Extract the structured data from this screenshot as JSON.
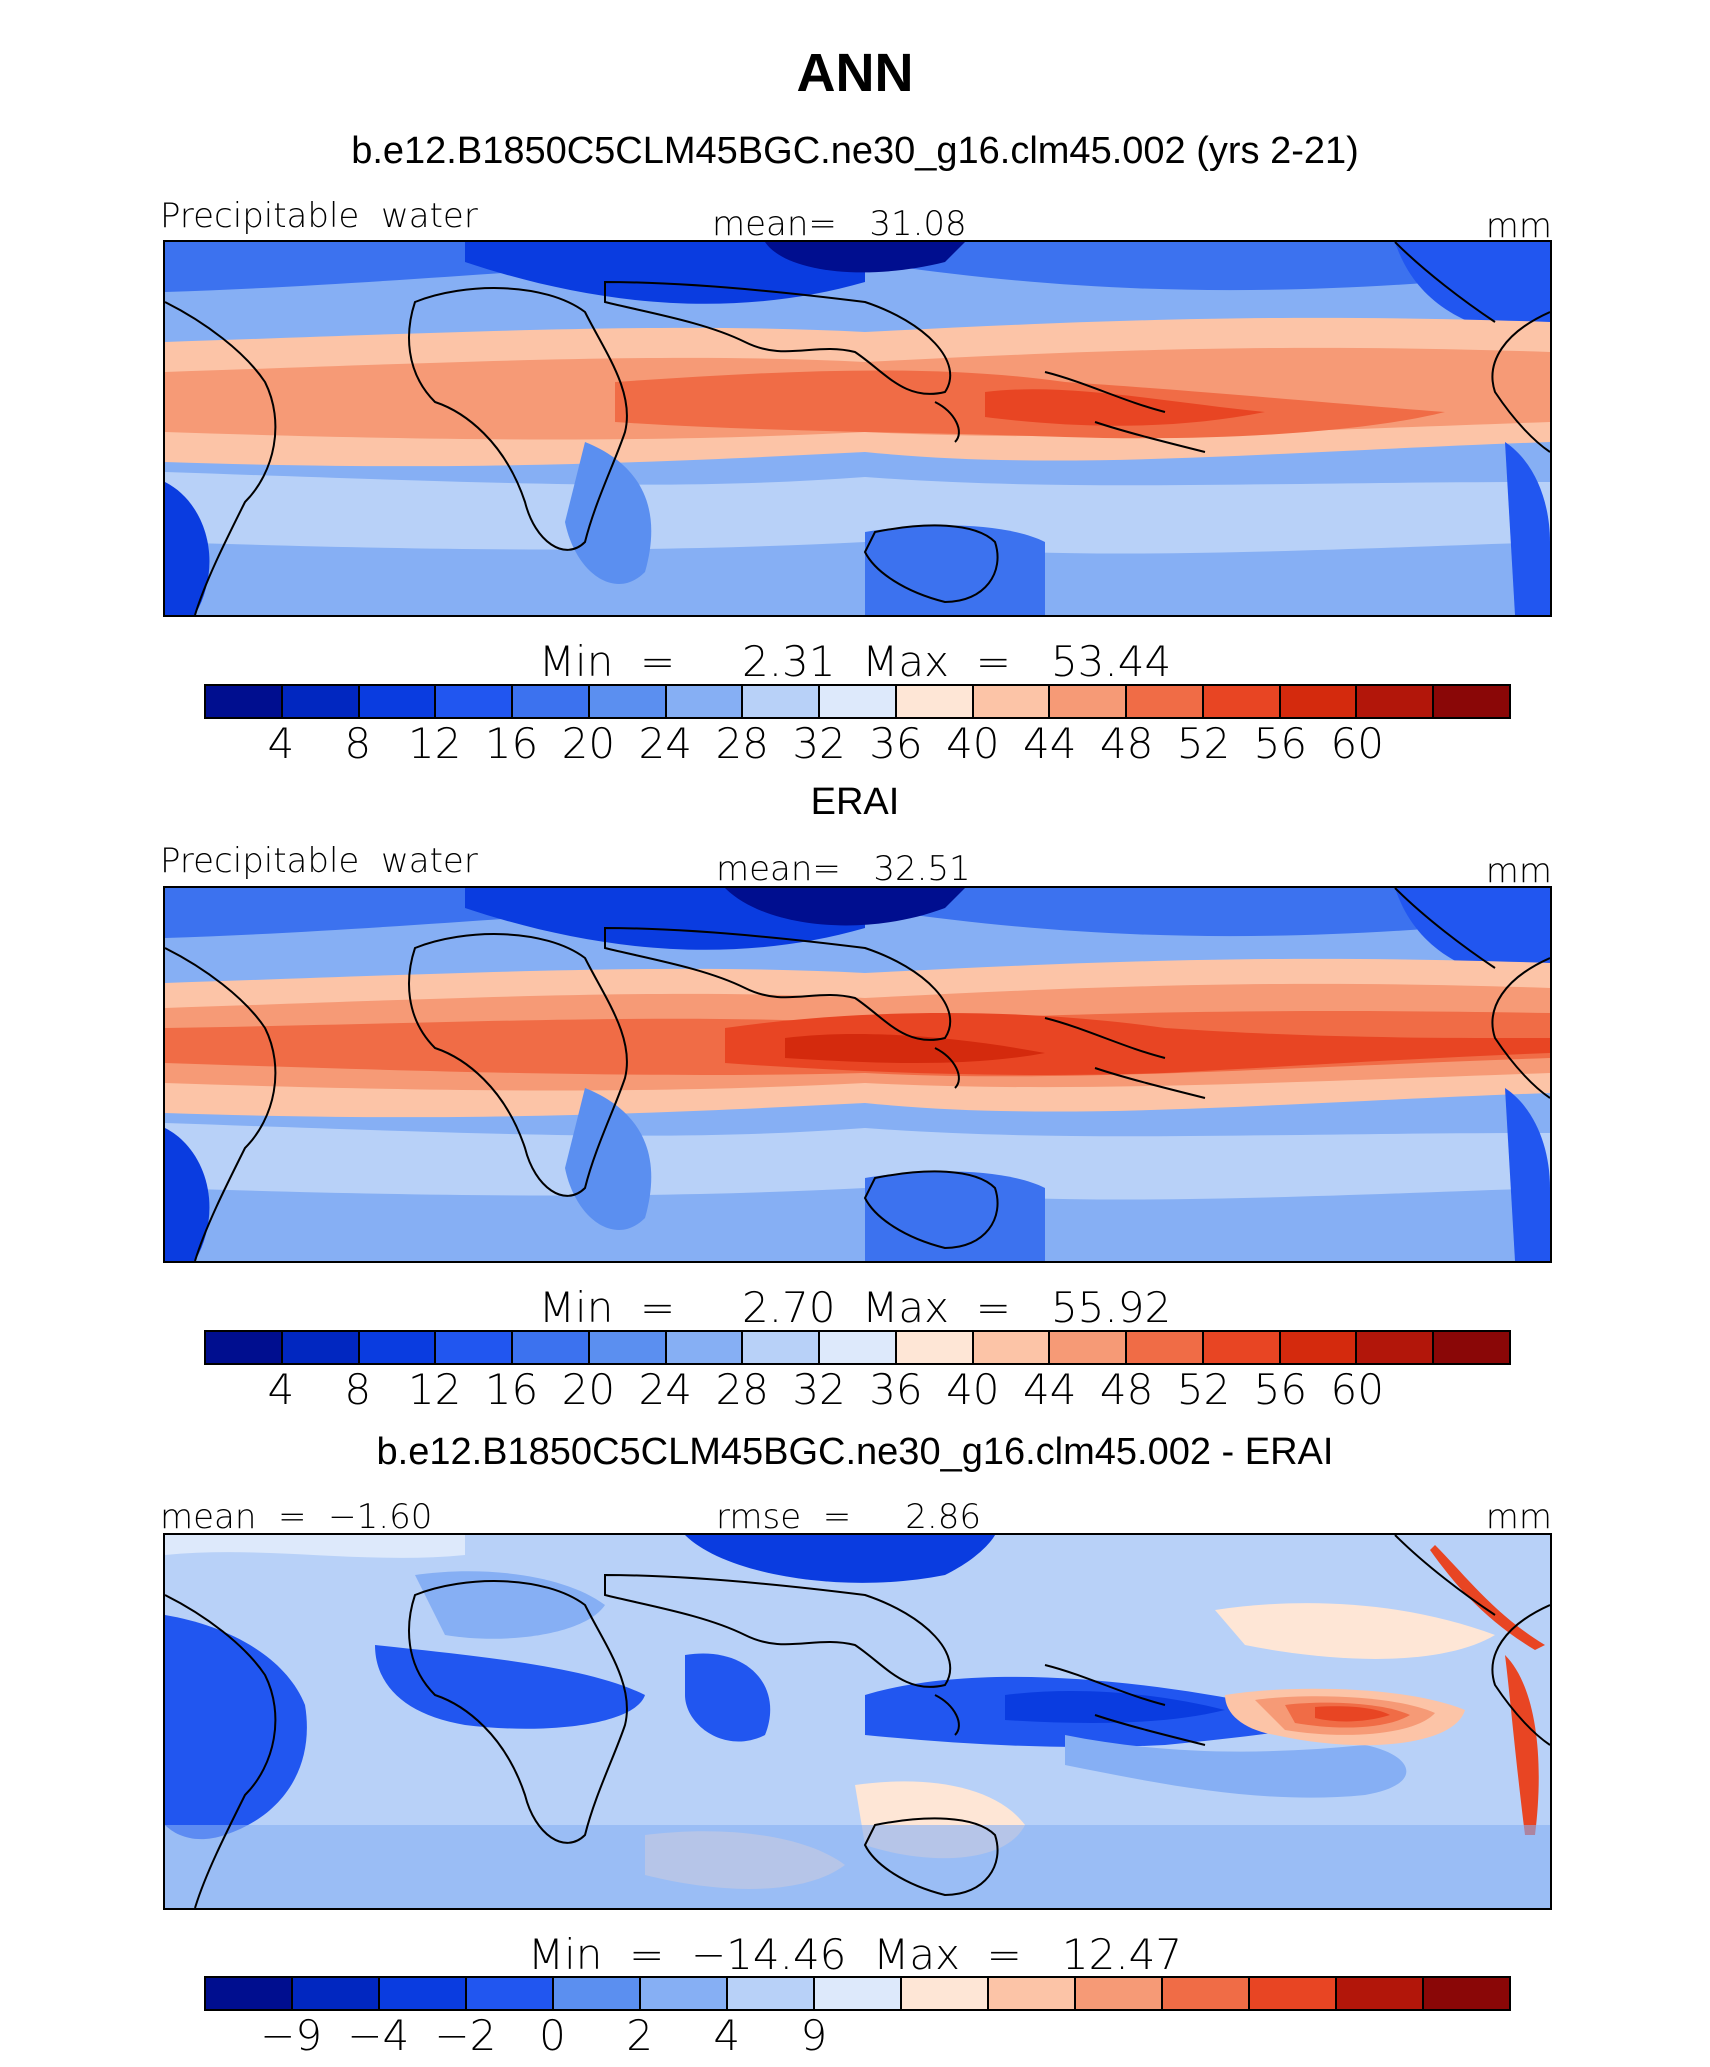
{
  "title": "ANN",
  "panels": [
    {
      "id": "model",
      "subtitle": "b.e12.B1850C5CLM45BGC.ne30_g16.clm45.002 (yrs 2-21)",
      "left_label": "Precipitable  water",
      "center_label": "mean=   31.08",
      "units": "mm",
      "minmax": "Min  =     2.31  Max  =   53.44",
      "colorbar_ticks": [
        "4",
        "8",
        "12",
        "16",
        "20",
        "24",
        "28",
        "32",
        "36",
        "40",
        "44",
        "48",
        "52",
        "56",
        "60"
      ]
    },
    {
      "id": "obs",
      "subtitle": "ERAI",
      "left_label": "Precipitable  water",
      "center_label": "mean=   32.51",
      "units": "mm",
      "minmax": "Min  =     2.70  Max  =   55.92",
      "colorbar_ticks": [
        "4",
        "8",
        "12",
        "16",
        "20",
        "24",
        "28",
        "32",
        "36",
        "40",
        "44",
        "48",
        "52",
        "56",
        "60"
      ]
    },
    {
      "id": "diff",
      "subtitle": "b.e12.B1850C5CLM45BGC.ne30_g16.clm45.002 - ERAI",
      "left_label": "mean  =  −1.60",
      "center_label": "rmse  =     2.86",
      "units": "mm",
      "minmax": "Min  =  −14.46  Max  =   12.47",
      "colorbar_ticks": [
        "−9",
        "−4",
        "−2",
        "0",
        "2",
        "4",
        "9"
      ]
    }
  ],
  "colors": {
    "palette": [
      "#000e8f",
      "#0127c0",
      "#0a3ce0",
      "#2156f0",
      "#3c72ef",
      "#5b8ff0",
      "#86aff4",
      "#b8d1f8",
      "#dde9fb",
      "#fee6d6",
      "#fcc4a7",
      "#f69a76",
      "#f06c46",
      "#e84523",
      "#d42a0d",
      "#b2160a",
      "#8a0707"
    ],
    "abs_colorbar": [
      "#000e8f",
      "#0127c0",
      "#0a3ce0",
      "#2156f0",
      "#3c72ef",
      "#5b8ff0",
      "#86aff4",
      "#b8d1f8",
      "#dde9fb",
      "#fee6d6",
      "#fcc4a7",
      "#f69a76",
      "#f06c46",
      "#e84523",
      "#d42a0d",
      "#b2160a",
      "#8a0707"
    ],
    "diff_colorbar": [
      "#000e8f",
      "#0127c0",
      "#0a3ce0",
      "#2156f0",
      "#5b8ff0",
      "#86aff4",
      "#b8d1f8",
      "#dde9fb",
      "#fee6d6",
      "#fcc4a7",
      "#f69a76",
      "#f06c46",
      "#e84523",
      "#b2160a",
      "#8a0707"
    ]
  }
}
